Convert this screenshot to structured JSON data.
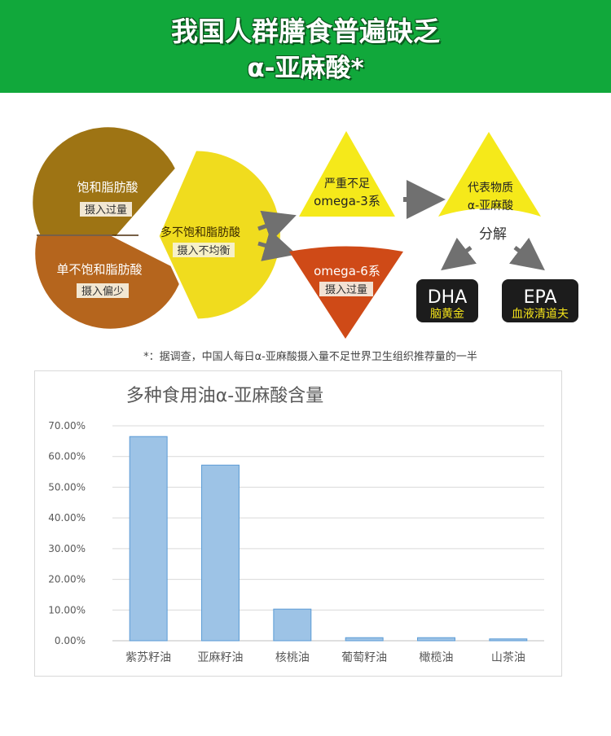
{
  "banner": {
    "line1": "我国人群膳食普遍缺乏",
    "line2": "α-亚麻酸*"
  },
  "infographic": {
    "pie": {
      "saturated": {
        "name": "饱和脂肪酸",
        "note": "摄入过量"
      },
      "mono": {
        "name": "单不饱和脂肪酸",
        "note": "摄入偏少"
      },
      "poly": {
        "name": "多不饱和脂肪酸",
        "note": "摄入不均衡"
      }
    },
    "omega3": {
      "line1": "严重不足",
      "line2": "omega-3系"
    },
    "omega6": {
      "line1": "omega-6系",
      "line2": "摄入过量"
    },
    "representative": {
      "line1": "代表物质",
      "line2": "α-亚麻酸"
    },
    "decompose": "分解",
    "dha": {
      "title": "DHA",
      "sub": "脑黄金"
    },
    "epa": {
      "title": "EPA",
      "sub": "血液清道夫"
    },
    "footnote": "*：据调查，中国人每日α-亚麻酸摄入量不足世界卫生组织推荐量的一半",
    "colors": {
      "saturated": "#9e7414",
      "mono": "#b5651d",
      "poly": "#f0dc1e",
      "omega3": "#f5e91a",
      "omega6": "#cf4a17",
      "badge": "#1c1c1c",
      "badge_sub": "#f3e21a"
    }
  },
  "chart_data": {
    "type": "bar",
    "title": "多种食用油α-亚麻酸含量",
    "categories": [
      "紫苏籽油",
      "亚麻籽油",
      "核桃油",
      "葡萄籽油",
      "橄榄油",
      "山茶油"
    ],
    "values": [
      66.5,
      57.2,
      10.3,
      1.0,
      1.0,
      0.6
    ],
    "ylim": [
      0,
      70
    ],
    "yticks": [
      0,
      10,
      20,
      30,
      40,
      50,
      60,
      70
    ],
    "ytick_labels": [
      "0.00%",
      "10.00%",
      "20.00%",
      "30.00%",
      "40.00%",
      "50.00%",
      "60.00%",
      "70.00%"
    ],
    "grid": true,
    "bar_color": "#9dc3e6"
  }
}
